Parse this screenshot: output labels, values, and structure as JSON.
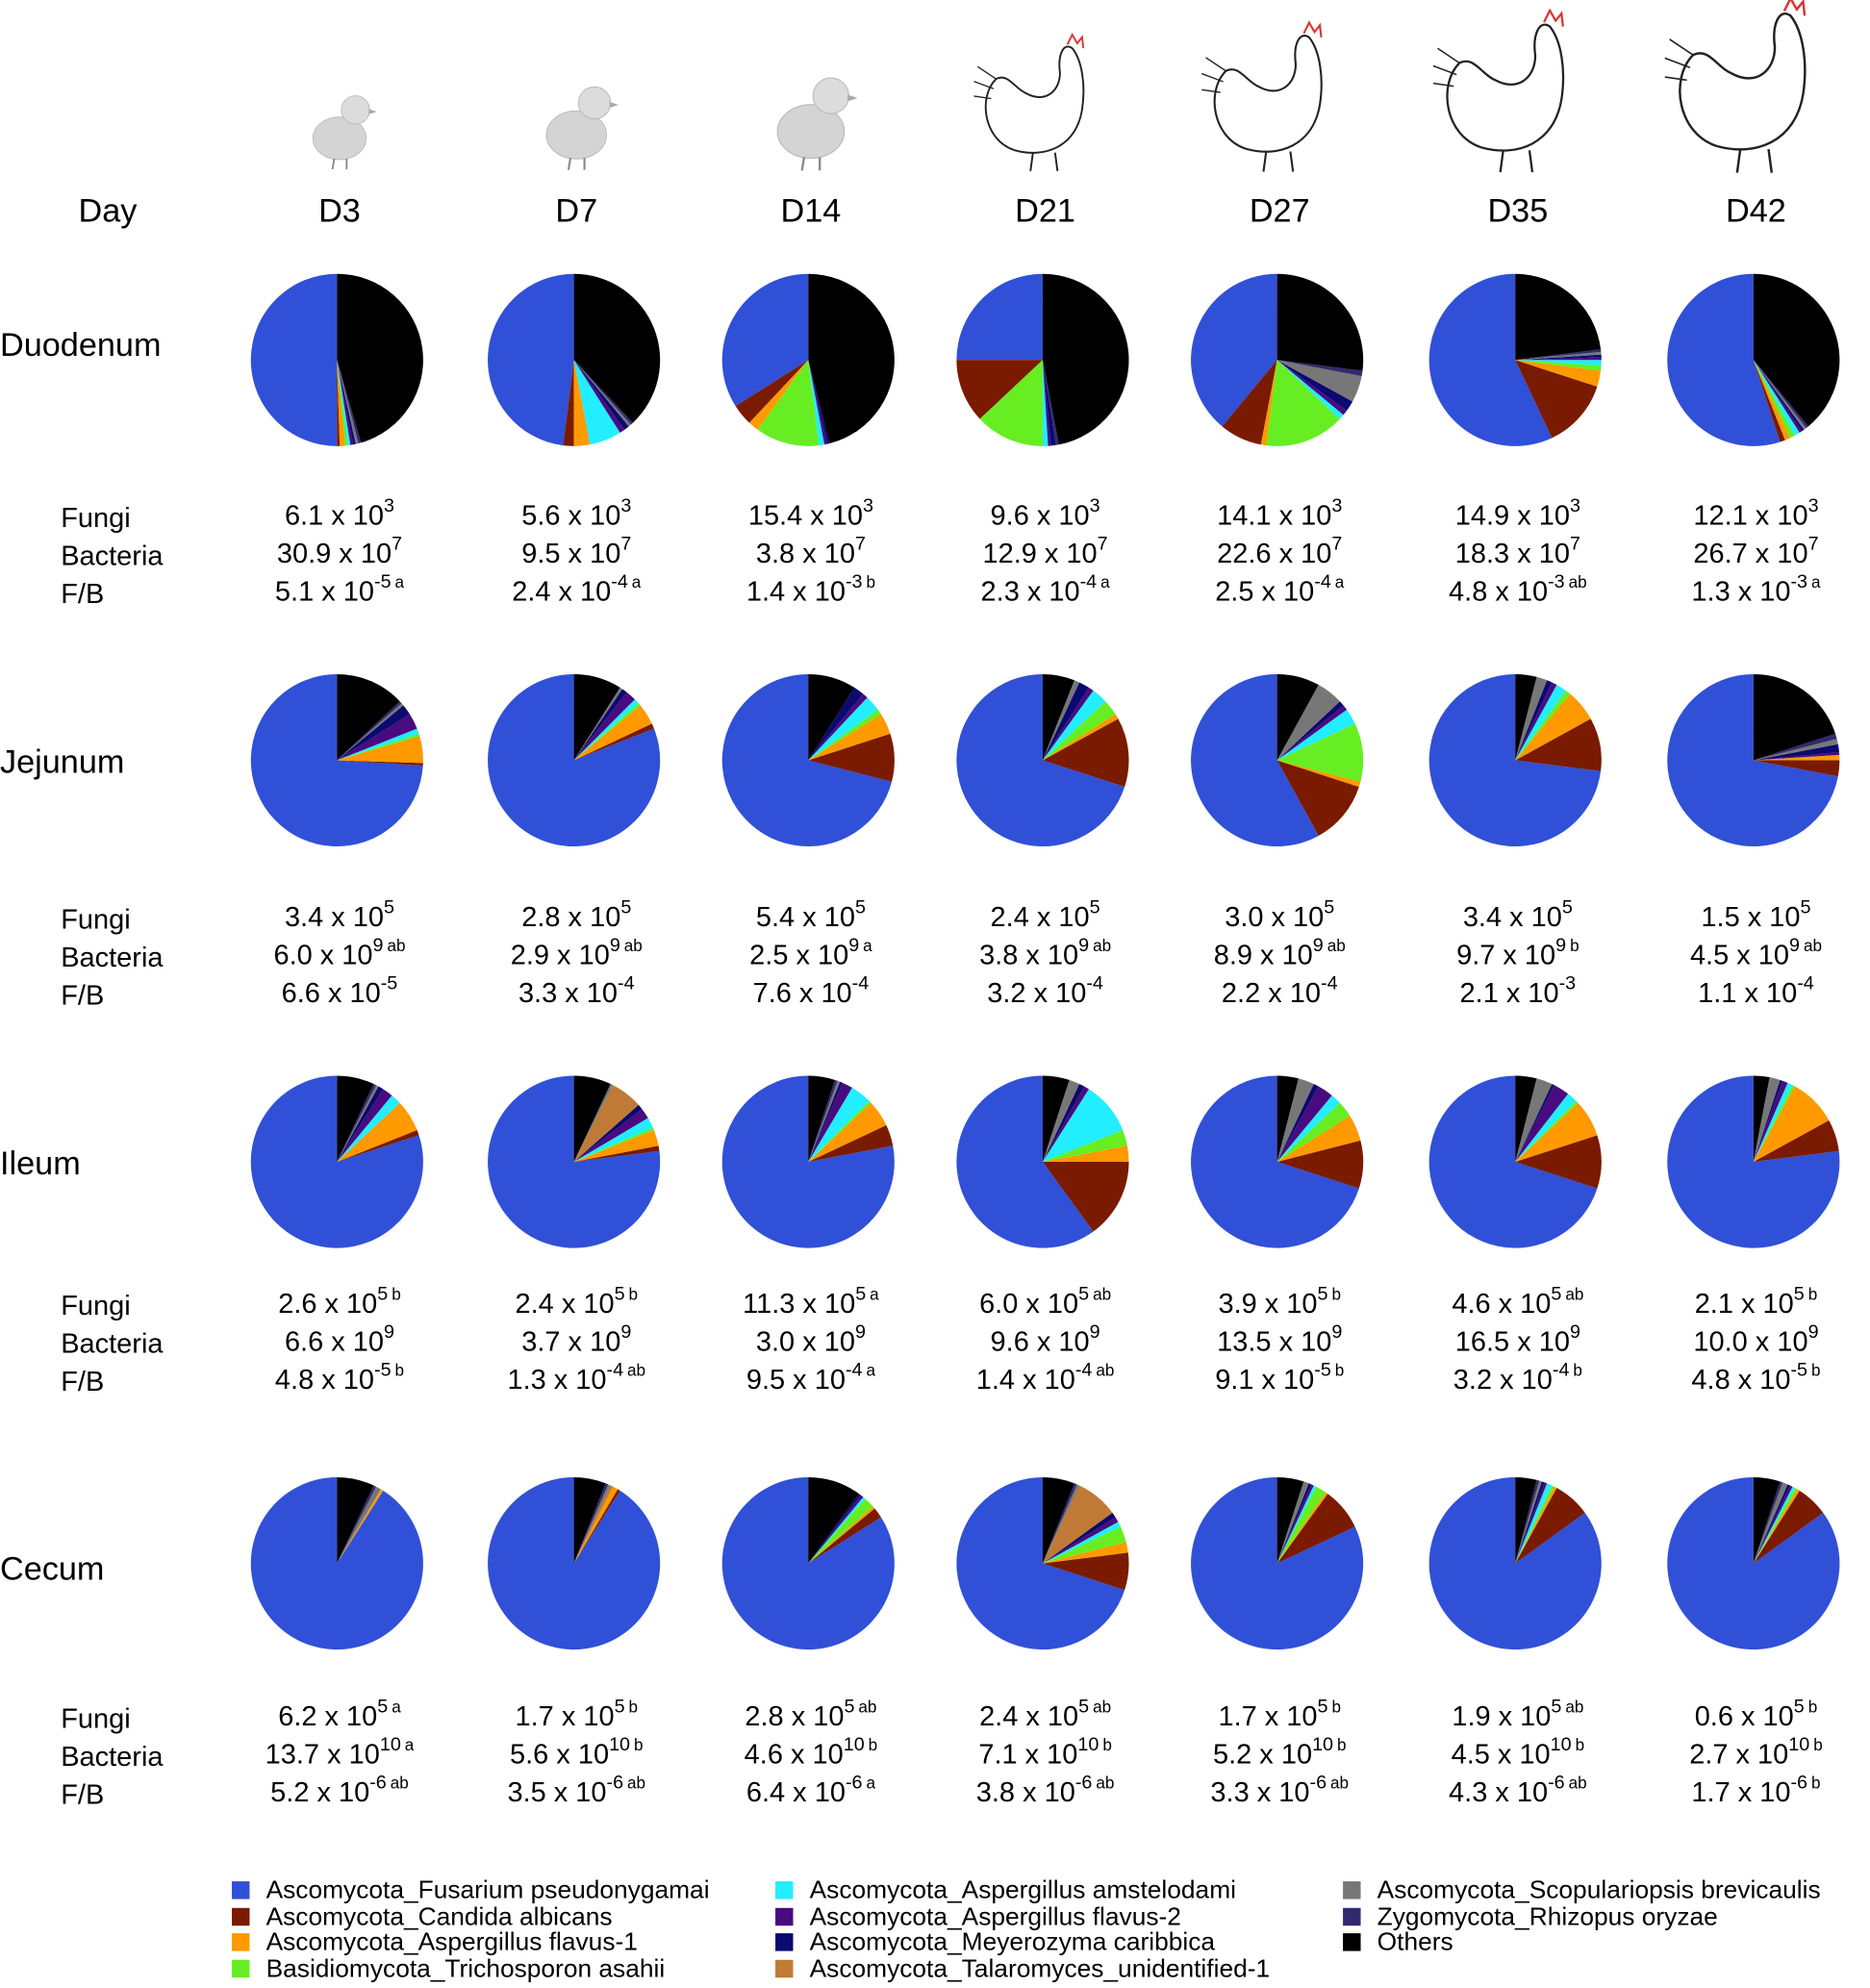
{
  "header": {
    "day_label": "Day",
    "days": [
      "D3",
      "D7",
      "D14",
      "D21",
      "D27",
      "D35",
      "D42"
    ]
  },
  "legend": {
    "names": [
      "Ascomycota_Fusarium pseudonygamai",
      "Ascomycota_Candida albicans",
      "Ascomycota_Aspergillus flavus-1",
      "Basidiomycota_Trichosporon asahii",
      "Ascomycota_Aspergillus amstelodami",
      "Ascomycota_Aspergillus flavus-2",
      "Ascomycota_Meyerozyma caribbica",
      "Ascomycota_Talaromyces_unidentified-1",
      "Ascomycota_Scopulariopsis brevicaulis",
      "Zygomycota_Rhizopus oryzae",
      "Others"
    ],
    "colors": [
      "#3050d8",
      "#7a1a00",
      "#ff9900",
      "#66ee22",
      "#22eeff",
      "#4a0a80",
      "#0a0a70",
      "#c07a35",
      "#777777",
      "#302a70",
      "#000000"
    ]
  },
  "sections": [
    {
      "name": "Duodenum",
      "pies": [
        [
          50,
          0.5,
          1,
          0.5,
          0.5,
          0.5,
          0.5,
          0,
          0.5,
          0.5,
          45.5
        ],
        [
          48,
          2,
          3,
          0,
          6,
          1,
          1,
          0,
          0.5,
          0.5,
          38
        ],
        [
          34,
          4,
          2,
          12,
          1,
          0.5,
          0.5,
          0,
          0,
          0,
          46
        ],
        [
          25,
          12,
          0,
          13,
          1,
          0.5,
          1,
          0,
          0,
          0.5,
          47
        ],
        [
          39,
          8,
          1,
          15,
          1,
          1,
          2,
          0,
          5,
          1,
          27
        ],
        [
          57,
          13,
          3,
          1,
          1,
          0.5,
          0.5,
          0,
          0.5,
          0.5,
          23
        ],
        [
          55,
          1,
          1,
          1,
          1,
          0.5,
          0.5,
          0,
          0.5,
          0.5,
          39
        ]
      ],
      "rows": [
        {
          "label": "Fungi",
          "cells": [
            [
              "6.1 x 10",
              "3"
            ],
            [
              "5.6 x 10",
              "3"
            ],
            [
              "15.4 x 10",
              "3"
            ],
            [
              "9.6 x 10",
              "3"
            ],
            [
              "14.1 x 10",
              "3"
            ],
            [
              "14.9 x 10",
              "3"
            ],
            [
              "12.1 x 10",
              "3"
            ]
          ]
        },
        {
          "label": "Bacteria",
          "cells": [
            [
              "30.9 x 10",
              "7"
            ],
            [
              "9.5 x 10",
              "7"
            ],
            [
              "3.8 x 10",
              "7"
            ],
            [
              "12.9 x 10",
              "7"
            ],
            [
              "22.6 x 10",
              "7"
            ],
            [
              "18.3 x 10",
              "7"
            ],
            [
              "26.7 x 10",
              "7"
            ]
          ]
        },
        {
          "label": "F/B",
          "cells": [
            [
              "5.1 x 10",
              "-5",
              "a"
            ],
            [
              "2.4 x 10",
              "-4",
              "a"
            ],
            [
              "1.4 x 10",
              "-3",
              "b"
            ],
            [
              "2.3 x 10",
              "-4",
              "a"
            ],
            [
              "2.5 x 10",
              "-4",
              "a"
            ],
            [
              "4.8 x 10",
              "-3",
              "ab"
            ],
            [
              "1.3 x 10",
              "-3",
              "a"
            ]
          ]
        }
      ]
    },
    {
      "name": "Jejunum",
      "pies": [
        [
          74,
          0.5,
          5,
          0.5,
          1,
          3,
          2,
          0,
          0.5,
          0.5,
          13
        ],
        [
          81,
          1,
          4,
          0.5,
          1,
          2,
          1,
          0,
          0.5,
          0,
          9
        ],
        [
          71,
          9,
          4,
          1,
          3,
          1,
          2,
          0,
          0,
          0,
          9
        ],
        [
          70,
          13,
          1,
          3,
          3,
          1,
          2,
          0,
          1,
          0,
          6
        ],
        [
          58,
          12,
          1,
          11,
          3,
          1,
          1,
          0,
          5,
          0,
          8
        ],
        [
          73,
          10,
          6,
          1,
          2,
          1,
          1,
          0,
          2,
          0,
          4
        ],
        [
          72,
          3,
          1,
          0,
          0,
          0.5,
          1.5,
          0,
          1,
          1,
          20
        ]
      ],
      "rows": [
        {
          "label": "Fungi",
          "cells": [
            [
              "3.4 x 10",
              "5"
            ],
            [
              "2.8 x 10",
              "5"
            ],
            [
              "5.4 x 10",
              "5"
            ],
            [
              "2.4 x 10",
              "5"
            ],
            [
              "3.0 x 10",
              "5"
            ],
            [
              "3.4 x 10",
              "5"
            ],
            [
              "1.5 x 10",
              "5"
            ]
          ]
        },
        {
          "label": "Bacteria",
          "cells": [
            [
              "6.0 x 10",
              "9",
              "ab"
            ],
            [
              "2.9 x 10",
              "9",
              "ab"
            ],
            [
              "2.5 x 10",
              "9",
              "a"
            ],
            [
              "3.8 x 10",
              "9",
              "ab"
            ],
            [
              "8.9 x 10",
              "9",
              "ab"
            ],
            [
              "9.7 x 10",
              "9",
              "b"
            ],
            [
              "4.5 x 10",
              "9",
              "ab"
            ]
          ]
        },
        {
          "label": "F/B",
          "cells": [
            [
              "6.6 x 10",
              "-5"
            ],
            [
              "3.3 x 10",
              "-4"
            ],
            [
              "7.6 x 10",
              "-4"
            ],
            [
              "3.2 x 10",
              "-4"
            ],
            [
              "2.2 x 10",
              "-4"
            ],
            [
              "2.1 x 10",
              "-3"
            ],
            [
              "1.1 x 10",
              "-4"
            ]
          ]
        }
      ]
    },
    {
      "name": "Ileum",
      "pies": [
        [
          80,
          1,
          6,
          0,
          2,
          2,
          1,
          0,
          0.5,
          0.5,
          7
        ],
        [
          77,
          1,
          3,
          0.5,
          2,
          2,
          1,
          6,
          0.5,
          0,
          7
        ],
        [
          78,
          4,
          5,
          0.5,
          4,
          2,
          0.5,
          0,
          0.5,
          0.5,
          5
        ],
        [
          60,
          15,
          3,
          3,
          10,
          1,
          1,
          0,
          2,
          0,
          5
        ],
        [
          70,
          9,
          5,
          3,
          2,
          3,
          1,
          0,
          3,
          0,
          4
        ],
        [
          70,
          10,
          7,
          0.5,
          2,
          3,
          0.5,
          0,
          3,
          0,
          4
        ],
        [
          77,
          6,
          9,
          0.5,
          1,
          1,
          0.5,
          0,
          2,
          0,
          3
        ]
      ],
      "rows": [
        {
          "label": "Fungi",
          "cells": [
            [
              "2.6 x 10",
              "5",
              "b"
            ],
            [
              "2.4 x 10",
              "5",
              "b"
            ],
            [
              "11.3 x 10",
              "5",
              "a"
            ],
            [
              "6.0 x 10",
              "5",
              "ab"
            ],
            [
              "3.9 x 10",
              "5",
              "b"
            ],
            [
              "4.6 x 10",
              "5",
              "ab"
            ],
            [
              "2.1 x 10",
              "5",
              "b"
            ]
          ]
        },
        {
          "label": "Bacteria",
          "cells": [
            [
              "6.6 x 10",
              "9"
            ],
            [
              "3.7 x 10",
              "9"
            ],
            [
              "3.0 x 10",
              "9"
            ],
            [
              "9.6 x 10",
              "9"
            ],
            [
              "13.5 x 10",
              "9"
            ],
            [
              "16.5 x 10",
              "9"
            ],
            [
              "10.0 x 10",
              "9"
            ]
          ]
        },
        {
          "label": "F/B",
          "cells": [
            [
              "4.8 x 10",
              "-5",
              "b"
            ],
            [
              "1.3 x 10",
              "-4",
              "ab"
            ],
            [
              "9.5 x 10",
              "-4",
              "a"
            ],
            [
              "1.4 x 10",
              "-4",
              "ab"
            ],
            [
              "9.1 x 10",
              "-5",
              "b"
            ],
            [
              "3.2 x 10",
              "-4",
              "b"
            ],
            [
              "4.8 x 10",
              "-5",
              "b"
            ]
          ]
        }
      ]
    },
    {
      "name": "Cecum",
      "pies": [
        [
          91,
          0,
          0.5,
          0,
          0,
          0,
          0,
          0,
          1,
          0.5,
          7
        ],
        [
          91,
          0.5,
          1,
          0,
          0,
          0,
          0,
          0.5,
          0.5,
          0.5,
          6
        ],
        [
          84,
          2,
          0.5,
          2,
          0.5,
          0.5,
          0.5,
          0,
          0,
          0,
          10
        ],
        [
          70,
          7,
          2,
          3,
          1,
          1,
          1,
          8,
          0.5,
          0.5,
          6
        ],
        [
          82,
          8,
          0.5,
          2,
          0.5,
          0.5,
          0.5,
          0,
          1,
          0,
          5
        ],
        [
          85,
          7,
          0.5,
          0.5,
          1,
          0.5,
          0.5,
          0,
          0.5,
          0.5,
          4
        ],
        [
          85,
          6,
          0.5,
          0.5,
          0.5,
          0.5,
          0.5,
          0,
          1,
          0.5,
          5
        ]
      ],
      "rows": [
        {
          "label": "Fungi",
          "cells": [
            [
              "6.2 x 10",
              "5",
              "a"
            ],
            [
              "1.7 x 10",
              "5",
              "b"
            ],
            [
              "2.8 x 10",
              "5",
              "ab"
            ],
            [
              "2.4 x 10",
              "5",
              "ab"
            ],
            [
              "1.7 x 10",
              "5",
              "b"
            ],
            [
              "1.9 x 10",
              "5",
              "ab"
            ],
            [
              "0.6 x 10",
              "5",
              "b"
            ]
          ]
        },
        {
          "label": "Bacteria",
          "cells": [
            [
              "13.7 x 10",
              "10",
              "a"
            ],
            [
              "5.6 x 10",
              "10",
              "b"
            ],
            [
              "4.6 x 10",
              "10",
              "b"
            ],
            [
              "7.1 x 10",
              "10",
              "b"
            ],
            [
              "5.2 x 10",
              "10",
              "b"
            ],
            [
              "4.5 x 10",
              "10",
              "b"
            ],
            [
              "2.7 x 10",
              "10",
              "b"
            ]
          ]
        },
        {
          "label": "F/B",
          "cells": [
            [
              "5.2 x 10",
              "-6",
              "ab"
            ],
            [
              "3.5 x 10",
              "-6",
              "ab"
            ],
            [
              "6.4 x 10",
              "-6",
              "a"
            ],
            [
              "3.8 x 10",
              "-6",
              "ab"
            ],
            [
              "3.3 x 10",
              "-6",
              "ab"
            ],
            [
              "4.3 x 10",
              "-6",
              "ab"
            ],
            [
              "1.7 x 10",
              "-6",
              "b"
            ]
          ]
        }
      ]
    }
  ]
}
